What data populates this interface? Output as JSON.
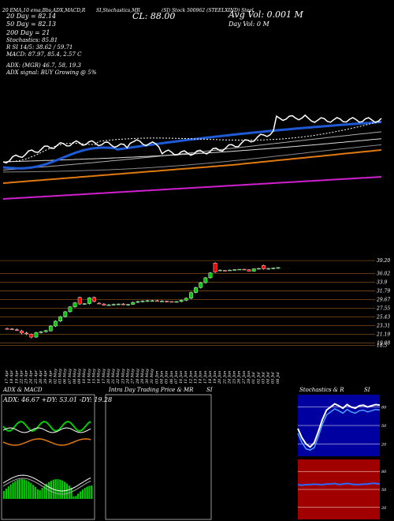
{
  "header": {
    "row1": "20 EMA,10 ema,Bbs,ADX,MACD,R",
    "row1b": "SI,Stochastics,MR",
    "row1c": "(SI) Stock 500962",
    "row1d": "(STEELXIND) Steel",
    "ema20": "20   Day = 82.14",
    "ema50": "50   Day = 82.13",
    "ema200": "200  Day = 21",
    "stoch": "Stochastics: 85.81",
    "si": "R      SI 14/5: 38.62 / 59.71",
    "macd": "MACD: 87.97,  85.4,  2.57 C",
    "adx": "ADX:                  (MGR) 46.7,  58,  19.3",
    "adx_signal": "ADX  signal:                              BUY Growing @ 5%",
    "cl": "CL: 88.00",
    "avg_vol": "Avg Vol: 0.001 M",
    "day_vol": "Day Vol: 0   M"
  },
  "panels": {
    "adx_macd": "ADX  & MACD",
    "adx_values": "ADX: 46.67 +DY: 53.01 -DY: 19.28",
    "intraday": "Intra Day Trading Price  & MR",
    "si": "SI",
    "stoch": "Stochastics & R",
    "si2": "SI"
  },
  "dates": [
    "17 Apr",
    "18 Apr",
    "19 Apr",
    "22 Apr",
    "23 Apr",
    "24 Apr",
    "25 Apr",
    "26 Apr",
    "29 Apr",
    "30 Apr",
    "02 May",
    "03 May",
    "06 May",
    "07 May",
    "08 May",
    "09 May",
    "10 May",
    "14 May",
    "15 May",
    "16 May",
    "17 May",
    "20 May",
    "21 May",
    "22 May",
    "23 May",
    "24 May",
    "27 May",
    "28 May",
    "29 May",
    "30 May",
    "31 May",
    "03 Jun",
    "04 Jun",
    "05 Jun",
    "06 Jun",
    "07 Jun",
    "10 Jun",
    "11 Jun",
    "12 Jun",
    "13 Jun",
    "14 Jun",
    "17 Jun",
    "18 Jun",
    "19 Jun",
    "20 Jun",
    "21 Jun",
    "24 Jun",
    "25 Jun",
    "26 Jun",
    "27 Jun",
    "28 Jun",
    "01 Jul",
    "02 Jul",
    "03 Jul",
    "04 Jul",
    "05 Jul",
    "08 Jul"
  ],
  "price_labels": [
    "39.20",
    "36.02",
    "33.9",
    "31.79",
    "29.67",
    "27.55",
    "25.43",
    "23.31",
    "21.19",
    "19.08",
    "18.5"
  ],
  "stoch_labels": [
    "80",
    "50",
    "20"
  ],
  "si_labels": [
    "80",
    "50",
    "20"
  ],
  "chart_data": {
    "type": "candlestick",
    "price_range": [
      18,
      40
    ],
    "candles": [
      {
        "o": 22.6,
        "h": 22.8,
        "l": 22.4,
        "c": 22.5
      },
      {
        "o": 22.5,
        "h": 22.7,
        "l": 22.2,
        "c": 22.4
      },
      {
        "o": 22.3,
        "h": 22.6,
        "l": 22.0,
        "c": 22.2
      },
      {
        "o": 22.0,
        "h": 22.3,
        "l": 21.2,
        "c": 21.5
      },
      {
        "o": 21.5,
        "h": 21.8,
        "l": 21.0,
        "c": 21.3
      },
      {
        "o": 21.2,
        "h": 21.4,
        "l": 20.2,
        "c": 20.5
      },
      {
        "o": 20.5,
        "h": 21.8,
        "l": 20.3,
        "c": 21.6
      },
      {
        "o": 21.6,
        "h": 22.0,
        "l": 21.4,
        "c": 21.8
      },
      {
        "o": 21.8,
        "h": 22.3,
        "l": 21.6,
        "c": 22.1
      },
      {
        "o": 22.0,
        "h": 23.4,
        "l": 21.9,
        "c": 23.2
      },
      {
        "o": 23.2,
        "h": 24.6,
        "l": 23.0,
        "c": 24.4
      },
      {
        "o": 24.4,
        "h": 25.7,
        "l": 24.2,
        "c": 25.5
      },
      {
        "o": 25.5,
        "h": 26.9,
        "l": 25.3,
        "c": 26.7
      },
      {
        "o": 26.7,
        "h": 28.1,
        "l": 26.5,
        "c": 27.9
      },
      {
        "o": 27.9,
        "h": 29.1,
        "l": 27.7,
        "c": 28.9
      },
      {
        "o": 30.2,
        "h": 30.4,
        "l": 28.4,
        "c": 28.6
      },
      {
        "o": 28.6,
        "h": 28.8,
        "l": 28.4,
        "c": 28.7
      },
      {
        "o": 28.7,
        "h": 30.3,
        "l": 28.5,
        "c": 30.1
      },
      {
        "o": 30.2,
        "h": 30.4,
        "l": 29.0,
        "c": 29.2
      },
      {
        "o": 28.8,
        "h": 29.0,
        "l": 28.6,
        "c": 28.7
      },
      {
        "o": 28.6,
        "h": 28.8,
        "l": 28.2,
        "c": 28.3
      },
      {
        "o": 28.4,
        "h": 28.6,
        "l": 28.2,
        "c": 28.4
      },
      {
        "o": 28.5,
        "h": 28.7,
        "l": 28.3,
        "c": 28.5
      },
      {
        "o": 28.5,
        "h": 28.7,
        "l": 28.3,
        "c": 28.6
      },
      {
        "o": 28.6,
        "h": 28.8,
        "l": 28.3,
        "c": 28.4
      },
      {
        "o": 28.4,
        "h": 28.6,
        "l": 28.2,
        "c": 28.5
      },
      {
        "o": 28.5,
        "h": 29.2,
        "l": 28.4,
        "c": 29.0
      },
      {
        "o": 29.0,
        "h": 29.4,
        "l": 28.8,
        "c": 29.2
      },
      {
        "o": 29.2,
        "h": 29.5,
        "l": 29.0,
        "c": 29.3
      },
      {
        "o": 29.3,
        "h": 29.6,
        "l": 29.1,
        "c": 29.4
      },
      {
        "o": 29.4,
        "h": 29.6,
        "l": 29.2,
        "c": 29.4
      },
      {
        "o": 29.4,
        "h": 29.6,
        "l": 29.2,
        "c": 29.3
      },
      {
        "o": 29.3,
        "h": 29.5,
        "l": 29.1,
        "c": 29.3
      },
      {
        "o": 29.3,
        "h": 29.4,
        "l": 29.0,
        "c": 29.2
      },
      {
        "o": 29.2,
        "h": 29.3,
        "l": 29.0,
        "c": 29.1
      },
      {
        "o": 29.1,
        "h": 29.3,
        "l": 28.9,
        "c": 29.2
      },
      {
        "o": 29.2,
        "h": 29.7,
        "l": 29.0,
        "c": 29.5
      },
      {
        "o": 29.5,
        "h": 30.2,
        "l": 29.3,
        "c": 30.0
      },
      {
        "o": 30.0,
        "h": 31.6,
        "l": 29.8,
        "c": 31.4
      },
      {
        "o": 31.4,
        "h": 32.8,
        "l": 31.2,
        "c": 32.6
      },
      {
        "o": 32.6,
        "h": 34.0,
        "l": 32.4,
        "c": 33.8
      },
      {
        "o": 33.8,
        "h": 35.2,
        "l": 33.6,
        "c": 35.0
      },
      {
        "o": 35.0,
        "h": 36.4,
        "l": 34.8,
        "c": 36.2
      },
      {
        "o": 38.6,
        "h": 38.8,
        "l": 36.2,
        "c": 36.4
      },
      {
        "o": 36.8,
        "h": 37.0,
        "l": 36.6,
        "c": 36.9
      },
      {
        "o": 36.8,
        "h": 36.9,
        "l": 36.6,
        "c": 36.7
      },
      {
        "o": 36.9,
        "h": 37.0,
        "l": 36.8,
        "c": 36.9
      },
      {
        "o": 37.0,
        "h": 37.1,
        "l": 36.9,
        "c": 37.0
      },
      {
        "o": 37.0,
        "h": 37.1,
        "l": 36.9,
        "c": 37.1
      },
      {
        "o": 37.1,
        "h": 37.2,
        "l": 36.9,
        "c": 37.0
      },
      {
        "o": 37.0,
        "h": 37.1,
        "l": 36.5,
        "c": 36.6
      },
      {
        "o": 36.6,
        "h": 37.3,
        "l": 36.5,
        "c": 37.2
      },
      {
        "o": 37.2,
        "h": 37.4,
        "l": 37.0,
        "c": 37.3
      },
      {
        "o": 38.0,
        "h": 38.2,
        "l": 37.0,
        "c": 37.2
      },
      {
        "o": 37.2,
        "h": 37.4,
        "l": 37.0,
        "c": 37.3
      },
      {
        "o": 37.3,
        "h": 37.5,
        "l": 37.1,
        "c": 37.4
      },
      {
        "o": 37.4,
        "h": 37.6,
        "l": 37.2,
        "c": 37.5
      }
    ],
    "stoch_k": [
      45,
      30,
      20,
      15,
      22,
      40,
      60,
      75,
      80,
      85,
      82,
      78,
      84,
      80,
      78,
      82,
      83,
      80,
      82,
      84,
      83
    ],
    "si_line": [
      58,
      57,
      58,
      58,
      59,
      58,
      58,
      59,
      59,
      60,
      58,
      59,
      60,
      59,
      58,
      58,
      59,
      59,
      60,
      60,
      59
    ]
  },
  "colors": {
    "bg": "#000000",
    "up": "#00cc00",
    "down": "#ff0000",
    "ema_blue": "#1f5ad6",
    "ema_orange": "#e07a10",
    "ema_magenta": "#d020d0",
    "price_line": "#ffffff",
    "stoch_bg": "#0000a0",
    "si_bg": "#a00000",
    "grid_brown": "#7a4a1a"
  }
}
